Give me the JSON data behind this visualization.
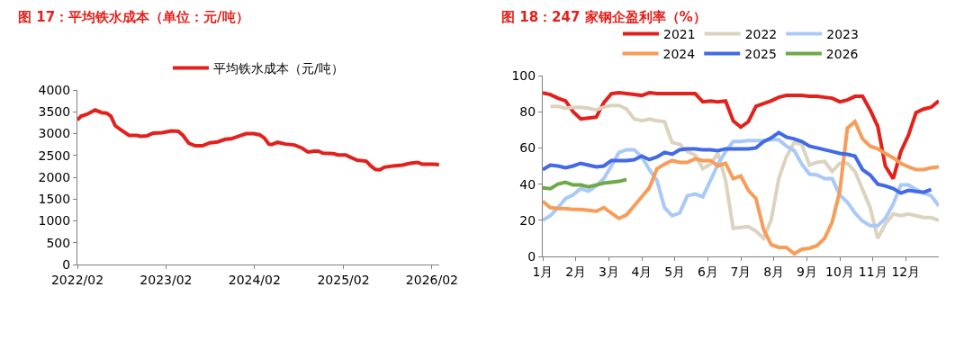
{
  "chart_data": [
    {
      "type": "line",
      "title": "图 17：平均铁水成本（单位：元/吨）",
      "legend": "top",
      "grid": false,
      "marker": "none",
      "line_style": "solid",
      "x": [
        "2022-02-01",
        "2022-02-16",
        "2022-03-11",
        "2022-04-15",
        "2022-05-12",
        "2022-06-01",
        "2022-06-19",
        "2022-07-07",
        "2022-08-01",
        "2022-09-02",
        "2022-10-03",
        "2022-10-21",
        "2022-11-15",
        "2022-12-10",
        "2023-01-16",
        "2023-02-23",
        "2023-03-24",
        "2023-04-12",
        "2023-05-06",
        "2023-06-01",
        "2023-07-01",
        "2023-08-01",
        "2023-09-02",
        "2023-10-03",
        "2023-10-27",
        "2023-11-28",
        "2023-12-28",
        "2024-01-29",
        "2024-02-23",
        "2024-03-12",
        "2024-03-31",
        "2024-04-12",
        "2024-05-06",
        "2024-06-07",
        "2024-07-14",
        "2024-08-14",
        "2024-09-08",
        "2024-10-03",
        "2024-10-21",
        "2024-11-09",
        "2024-12-22",
        "2025-01-10",
        "2025-02-10",
        "2025-03-05",
        "2025-03-30",
        "2025-05-06",
        "2025-05-25",
        "2025-06-13",
        "2025-07-01",
        "2025-07-20",
        "2025-08-26",
        "2025-10-02",
        "2025-11-03",
        "2025-12-04",
        "2025-12-22",
        "2026-02-05",
        "2026-03-02"
      ],
      "series": [
        {
          "name": "平均铁水成本（元/吨）",
          "color": "#e3211c",
          "values": [
            3310,
            3400,
            3440,
            3540,
            3480,
            3470,
            3400,
            3180,
            3080,
            2960,
            2960,
            2940,
            2950,
            3010,
            3020,
            3060,
            3050,
            2960,
            2780,
            2720,
            2720,
            2790,
            2810,
            2870,
            2880,
            2940,
            3000,
            3000,
            2970,
            2900,
            2760,
            2750,
            2800,
            2760,
            2740,
            2670,
            2580,
            2600,
            2600,
            2550,
            2540,
            2510,
            2510,
            2450,
            2390,
            2370,
            2260,
            2180,
            2170,
            2230,
            2260,
            2280,
            2320,
            2340,
            2300,
            2300,
            2290
          ]
        }
      ],
      "xlim": [
        "2022-02-01",
        "2026-03-03"
      ],
      "xticks": [
        {
          "value": "2022-02-01",
          "label": "2022/02"
        },
        {
          "value": "2023-02-01",
          "label": "2023/02"
        },
        {
          "value": "2024-02-01",
          "label": "2024/02"
        },
        {
          "value": "2025-02-01",
          "label": "2025/02"
        },
        {
          "value": "2026-02-01",
          "label": "2026/02"
        }
      ],
      "ylim": [
        0,
        4000
      ],
      "yticks": [
        0,
        500,
        1000,
        1500,
        2000,
        2500,
        3000,
        3500,
        4000
      ]
    },
    {
      "type": "line",
      "title": "图 18：247 家钢企盈利率（%）",
      "legend": "top",
      "grid": false,
      "marker": "none",
      "line_style": "solid",
      "x": [
        1.0,
        1.23,
        1.46,
        1.69,
        1.92,
        2.15,
        2.38,
        2.62,
        2.85,
        3.08,
        3.31,
        3.54,
        3.77,
        4.0,
        4.23,
        4.46,
        4.69,
        4.92,
        5.15,
        5.38,
        5.62,
        5.85,
        6.08,
        6.31,
        6.54,
        6.77,
        7.0,
        7.23,
        7.46,
        7.69,
        7.92,
        8.15,
        8.38,
        8.62,
        8.85,
        9.08,
        9.31,
        9.54,
        9.77,
        10.0,
        10.23,
        10.46,
        10.69,
        10.92,
        11.15,
        11.38,
        11.62,
        11.85,
        12.08,
        12.31,
        12.54,
        12.77,
        13.0
      ],
      "series": [
        {
          "name": "2021",
          "color": "#e3211c",
          "values": [
            90.5,
            89.5,
            87.5,
            86,
            80,
            76,
            76.5,
            77,
            85,
            90,
            90.5,
            90,
            89.5,
            89,
            90.5,
            90,
            90,
            90,
            90,
            90,
            90,
            85.5,
            86,
            85.5,
            86,
            75,
            71.5,
            74.5,
            83,
            84.5,
            86,
            88,
            89,
            89,
            89,
            88.5,
            88.5,
            88,
            87.5,
            85.5,
            86.5,
            88.5,
            88.5,
            81,
            72,
            50,
            43,
            58,
            67,
            79.5,
            81.5,
            82.5,
            86
          ]
        },
        {
          "name": "2022",
          "color": "#dcd3bf",
          "values": [
            null,
            83,
            83,
            82,
            82.5,
            82.5,
            82,
            81,
            82.5,
            83.5,
            83.5,
            81.5,
            76,
            75,
            76,
            75,
            74.5,
            63,
            62,
            58,
            56,
            48.5,
            51,
            57,
            42,
            15.5,
            16,
            16.5,
            14,
            10,
            20,
            43,
            55,
            63,
            62,
            50.5,
            52,
            52.5,
            47,
            51.5,
            51.5,
            47,
            37,
            27,
            10,
            18,
            23.5,
            22.5,
            23.5,
            22.5,
            21.5,
            21.5,
            20
          ]
        },
        {
          "name": "2023",
          "color": "#a9c9f7",
          "values": [
            20,
            22.5,
            27,
            32,
            34,
            37.5,
            36,
            39,
            43,
            50,
            57.5,
            59,
            59,
            55,
            48,
            42,
            27,
            22.5,
            24,
            33.5,
            34.5,
            33,
            42,
            51,
            58,
            63.5,
            63.5,
            64,
            64,
            64,
            64.5,
            64.5,
            61,
            58.5,
            51,
            45.5,
            45,
            43,
            43,
            34,
            30,
            24,
            19.5,
            17,
            17,
            21,
            29,
            39.5,
            39.5,
            37,
            35,
            33.5,
            28
          ]
        },
        {
          "name": "2024",
          "color": "#f89c58",
          "values": [
            30.5,
            27,
            26.5,
            26.5,
            26,
            26,
            25.5,
            25,
            27,
            24,
            21,
            23,
            28,
            33,
            38,
            48.5,
            51,
            53,
            52,
            52,
            54,
            53,
            53,
            50,
            51.5,
            43,
            44.5,
            36.5,
            32,
            15,
            6.5,
            5,
            5,
            1.5,
            4,
            4.5,
            6,
            10,
            19,
            36,
            71,
            74.5,
            65,
            61,
            59.5,
            57,
            54.5,
            51.5,
            49.5,
            48,
            48,
            49,
            49.5
          ]
        },
        {
          "name": "2025",
          "color": "#4169e8",
          "values": [
            48,
            50.5,
            50,
            49,
            50,
            51.5,
            50.5,
            49.5,
            50,
            53,
            53,
            53,
            53.5,
            55.5,
            53.5,
            55,
            57.5,
            56.5,
            59,
            59.5,
            59.5,
            59,
            59,
            58.5,
            59.5,
            59.5,
            59.5,
            59.5,
            60,
            63.5,
            65.5,
            68.5,
            66,
            65,
            63.5,
            61,
            60,
            59,
            58,
            57,
            56.5,
            55.5,
            48,
            45,
            40,
            39,
            37.5,
            35,
            36.5,
            36,
            35.5,
            37,
            null
          ]
        },
        {
          "name": "2026",
          "color": "#6fa847",
          "values": [
            38,
            37.5,
            40,
            41,
            39.5,
            39.5,
            38.5,
            39.5,
            40.5,
            41,
            41.5,
            42.5,
            null,
            null,
            null,
            null,
            null,
            null,
            null,
            null,
            null,
            null,
            null,
            null,
            null,
            null,
            null,
            null,
            null,
            null,
            null,
            null,
            null,
            null,
            null,
            null,
            null,
            null,
            null,
            null,
            null,
            null,
            null,
            null,
            null,
            null,
            null,
            null,
            null,
            null,
            null,
            null,
            null
          ]
        }
      ],
      "xlim": [
        1,
        13
      ],
      "xticks": [
        {
          "value": 1,
          "label": "1月"
        },
        {
          "value": 2,
          "label": "2月"
        },
        {
          "value": 3,
          "label": "3月"
        },
        {
          "value": 4,
          "label": "4月"
        },
        {
          "value": 5,
          "label": "5月"
        },
        {
          "value": 6,
          "label": "6月"
        },
        {
          "value": 7,
          "label": "7月"
        },
        {
          "value": 8,
          "label": "8月"
        },
        {
          "value": 9,
          "label": "9月"
        },
        {
          "value": 10,
          "label": "10月"
        },
        {
          "value": 11,
          "label": "11月"
        },
        {
          "value": 12,
          "label": "12月"
        }
      ],
      "ylim": [
        0,
        100
      ],
      "yticks": [
        0,
        20,
        40,
        60,
        80,
        100
      ]
    }
  ]
}
